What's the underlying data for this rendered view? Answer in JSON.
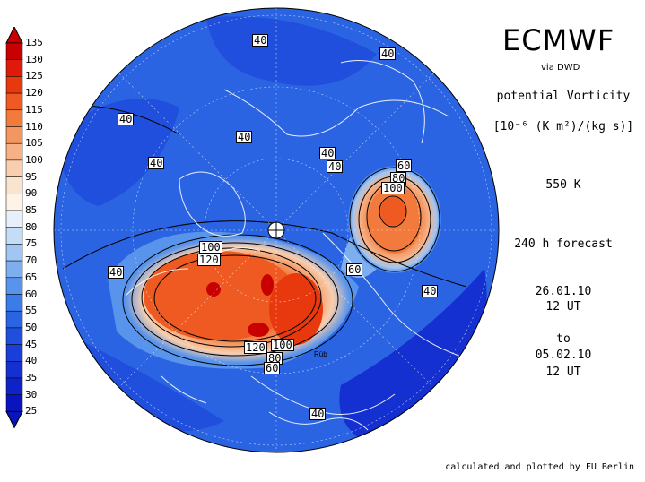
{
  "header": {
    "title": "ECMWF",
    "source": "via DWD",
    "variable": "potential Vorticity",
    "units": "[10⁻⁶ (K m²)/(kg s)]",
    "level": "550 K",
    "forecast": "240 h forecast",
    "init_date": "26.01.10",
    "init_time": "12 UT",
    "to_word": "to",
    "valid_date": "05.02.10",
    "valid_time": "12 UT"
  },
  "footer": {
    "credit": "calculated and plotted by FU Berlin"
  },
  "legend": {
    "ticks": [
      "135",
      "130",
      "125",
      "120",
      "115",
      "110",
      "105",
      "100",
      "95",
      "90",
      "85",
      "80",
      "75",
      "70",
      "65",
      "60",
      "55",
      "50",
      "45",
      "40",
      "35",
      "30",
      "25"
    ],
    "colors": [
      "#c80000",
      "#e01a0a",
      "#e8380e",
      "#ee5a22",
      "#f27a3c",
      "#f49660",
      "#f6b286",
      "#f8ceae",
      "#fbe4cf",
      "#fdf3e7",
      "#e5f0fb",
      "#c4dcf6",
      "#a2c6f2",
      "#7daeee",
      "#5894eb",
      "#3a7ce8",
      "#2a64e2",
      "#1f4fdc",
      "#1a3ed8",
      "#1530d0",
      "#0f22c8",
      "#0a14be"
    ]
  },
  "contour_labels": [
    {
      "text": "40"
    },
    {
      "text": "40"
    },
    {
      "text": "40"
    },
    {
      "text": "40"
    },
    {
      "text": "40"
    },
    {
      "text": "40"
    },
    {
      "text": "40"
    },
    {
      "text": "60"
    },
    {
      "text": "80"
    },
    {
      "text": "100"
    },
    {
      "text": "100"
    },
    {
      "text": "120"
    },
    {
      "text": "40"
    },
    {
      "text": "60"
    },
    {
      "text": "40"
    },
    {
      "text": "120"
    },
    {
      "text": "100"
    },
    {
      "text": "80"
    },
    {
      "text": "60"
    },
    {
      "text": "40"
    }
  ],
  "colors": {
    "background": "#ffffff",
    "deep_blue": "#1530d0",
    "mid_blue": "#2a64e2",
    "high_red": "#c80000"
  }
}
